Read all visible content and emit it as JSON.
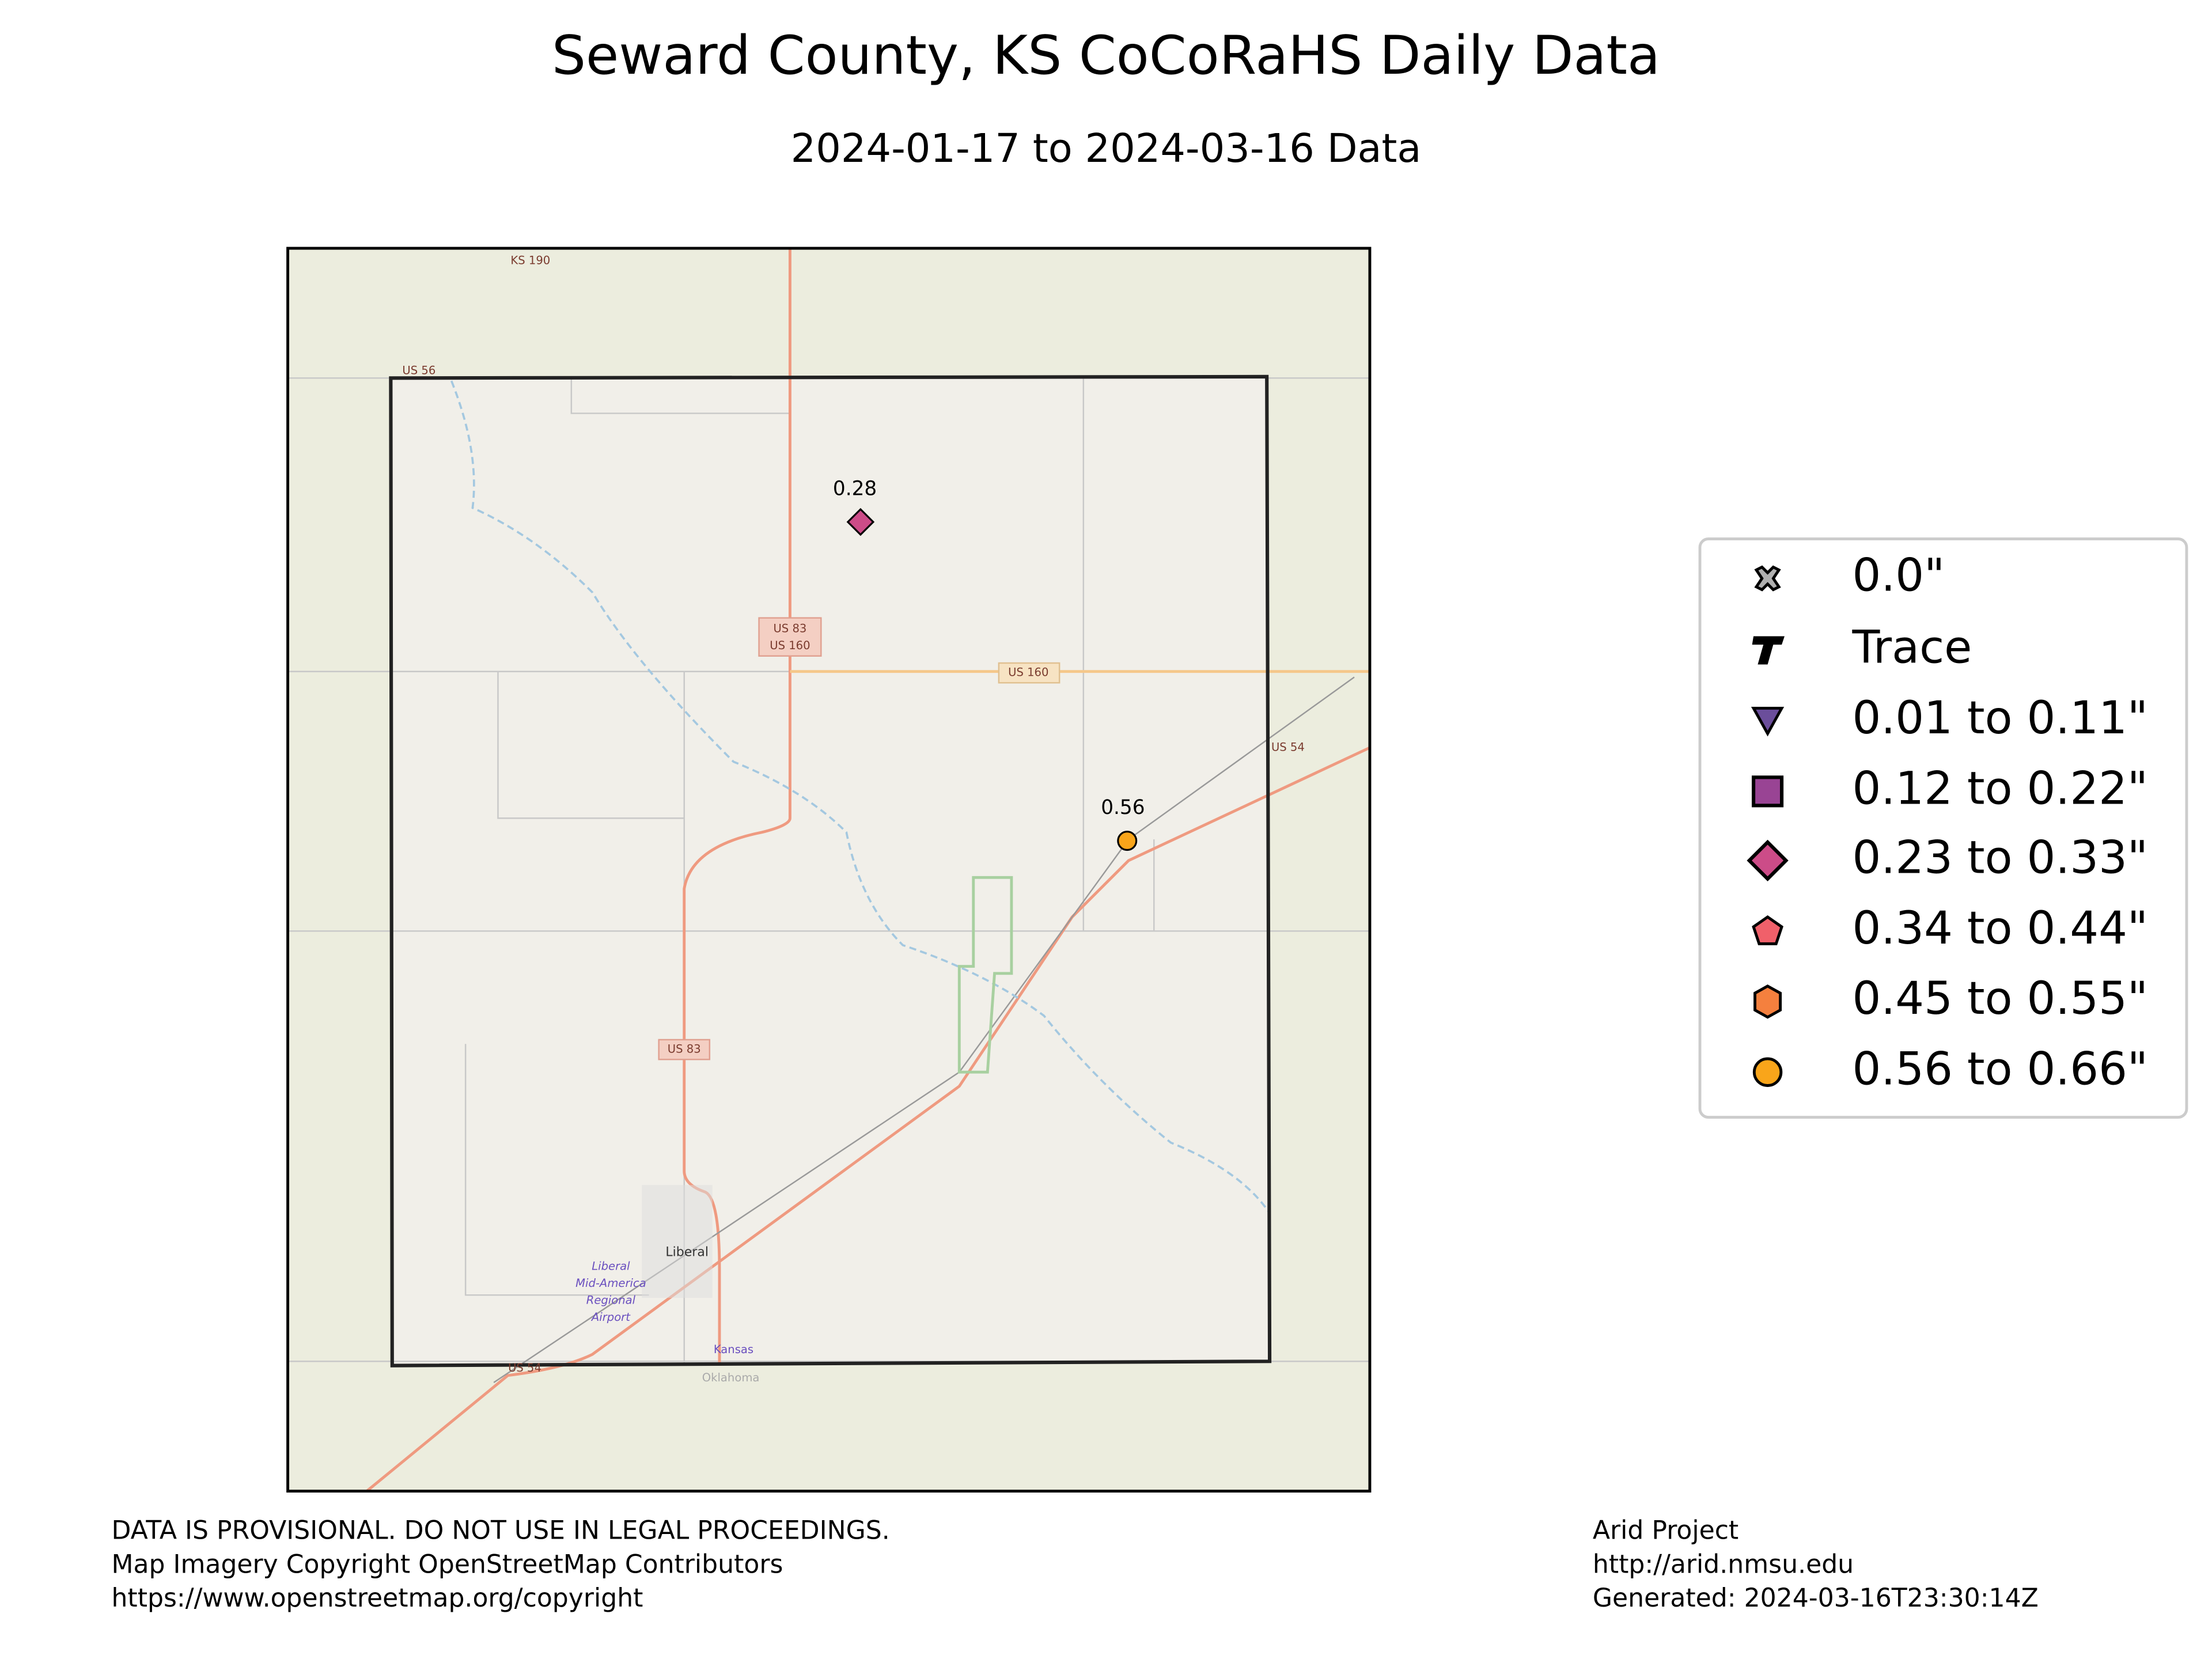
{
  "map": {
    "title": "Seward County, KS CoCoRaHS Daily Data",
    "subtitle": "2024-01-17 to 2024-03-16 Data",
    "stations": [
      {
        "value": 0.28
      },
      {
        "value": 0.56
      }
    ],
    "legend": [
      {
        "label": "0.0\"",
        "color": "#b0b0b0"
      },
      {
        "label": "Trace",
        "color": "#000000"
      },
      {
        "label": "0.01 to 0.11\"",
        "color": "#6b4e9b"
      },
      {
        "label": "0.12 to 0.22\"",
        "color": "#994494"
      },
      {
        "label": "0.23 to 0.33\"",
        "color": "#cc4c88"
      },
      {
        "label": "0.34 to 0.44\"",
        "color": "#f0606a"
      },
      {
        "label": "0.45 to 0.55\"",
        "color": "#f5803e"
      },
      {
        "label": "0.56 to 0.66\"",
        "color": "#f9a51a"
      }
    ],
    "labels": {
      "ks190": "KS 190",
      "us56": "US 56",
      "us83_160a": "US 83",
      "us83_160b": "US 160",
      "us160": "US 160",
      "us54a": "US 54",
      "us54b": "US 54",
      "us83": "US 83",
      "liberal": "Liberal",
      "airport1": "Liberal",
      "airport2": "Mid-America",
      "airport3": "Regional",
      "airport4": "Airport",
      "kansas": "Kansas",
      "oklahoma": "Oklahoma"
    },
    "footer_left": [
      "DATA IS PROVISIONAL. DO NOT USE IN LEGAL PROCEEDINGS.",
      "Map Imagery Copyright OpenStreetMap Contributors",
      "https://www.openstreetmap.org/copyright"
    ],
    "footer_right": [
      "Arid Project",
      "http://arid.nmsu.edu",
      "Generated: 2024-03-16T23:30:14Z"
    ]
  }
}
